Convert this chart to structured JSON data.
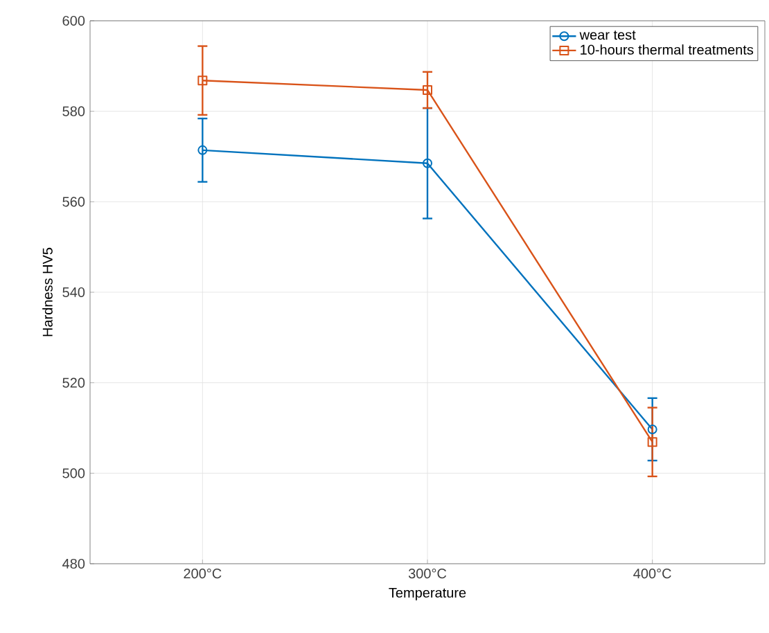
{
  "chart_data": {
    "type": "line",
    "xlabel": "Temperature",
    "ylabel": "Hardness HV5",
    "categories": [
      "200°C",
      "300°C",
      "400°C"
    ],
    "ylim": [
      480,
      600
    ],
    "yticks": [
      480,
      500,
      520,
      540,
      560,
      580,
      600
    ],
    "grid": true,
    "legend": "top right",
    "series": [
      {
        "name": "wear test",
        "color": "#0072bd",
        "marker": "circle",
        "values": [
          571.4,
          568.5,
          509.7
        ],
        "errors": [
          7,
          12.2,
          6.9
        ]
      },
      {
        "name": "10-hours thermal treatments",
        "color": "#d95319",
        "marker": "square",
        "values": [
          586.8,
          584.7,
          506.9
        ],
        "errors": [
          7.6,
          4,
          7.6
        ]
      }
    ]
  }
}
